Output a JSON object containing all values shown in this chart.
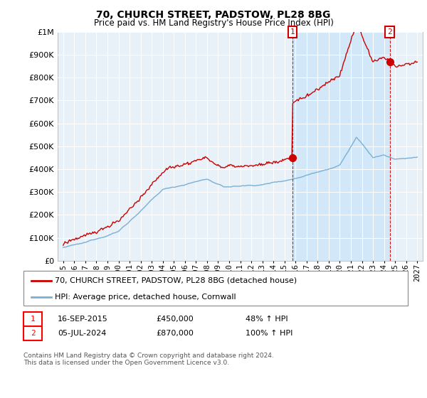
{
  "title": "70, CHURCH STREET, PADSTOW, PL28 8BG",
  "subtitle": "Price paid vs. HM Land Registry's House Price Index (HPI)",
  "legend_line1": "70, CHURCH STREET, PADSTOW, PL28 8BG (detached house)",
  "legend_line2": "HPI: Average price, detached house, Cornwall",
  "annotation1_date": "16-SEP-2015",
  "annotation1_price": "£450,000",
  "annotation1_hpi": "48% ↑ HPI",
  "annotation2_date": "05-JUL-2024",
  "annotation2_price": "£870,000",
  "annotation2_hpi": "100% ↑ HPI",
  "footer": "Contains HM Land Registry data © Crown copyright and database right 2024.\nThis data is licensed under the Open Government Licence v3.0.",
  "hpi_color": "#7ab0d4",
  "price_color": "#cc0000",
  "shade_color": "#d0e8f8",
  "dashed_line_color": "#cc0000",
  "plot_bg_color": "#e8f0f8",
  "ylim": [
    0,
    1000000
  ],
  "yticks": [
    0,
    100000,
    200000,
    300000,
    400000,
    500000,
    600000,
    700000,
    800000,
    900000,
    1000000
  ],
  "year_start": 1995,
  "year_end": 2027,
  "sale1_year": 2015.72,
  "sale1_price": 450000,
  "sale2_year": 2024.51,
  "sale2_price": 870000,
  "xlim_left": 1994.5,
  "xlim_right": 2027.5
}
